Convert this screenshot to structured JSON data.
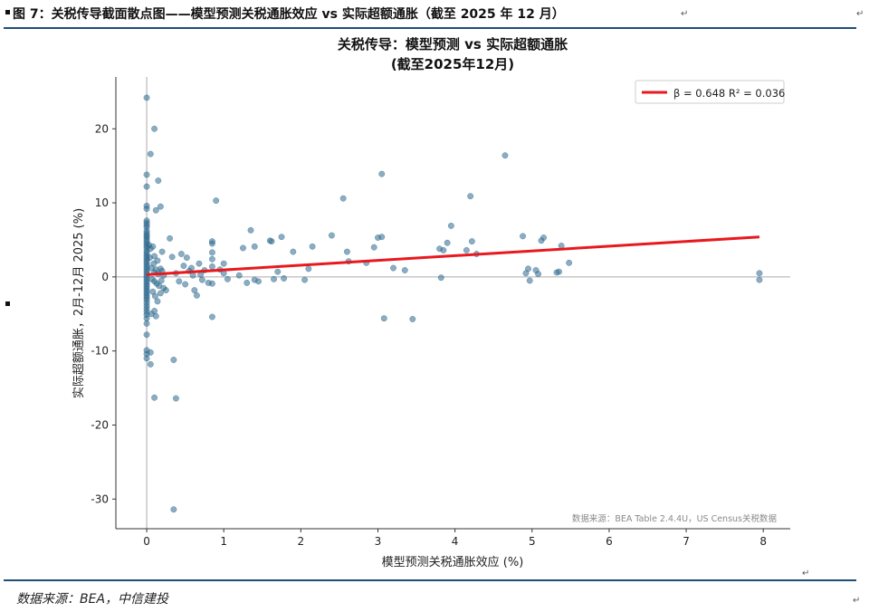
{
  "header": {
    "figure_title": "图 7：关税传导截面散点图——模型预测关税通胀效应 vs 实际超额通胀（截至 2025 年 12 月）",
    "return_mark": "↵"
  },
  "footer": {
    "source": "数据来源：BEA，中信建投",
    "return_mark": "↵"
  },
  "chart_data": {
    "type": "scatter",
    "title_line1": "关税传导：模型预测 vs 实际超额通胀",
    "title_line2": "(截至2025年12月)",
    "xlabel": "模型预测关税通胀效应 (%)",
    "ylabel": "实际超额通胀，2月-12月 2025 (%)",
    "xlim": [
      -0.4,
      8.35
    ],
    "ylim": [
      -34,
      27
    ],
    "xticks": [
      "0",
      "1",
      "2",
      "3",
      "4",
      "5",
      "6",
      "7",
      "8"
    ],
    "yticks": [
      "-30",
      "-20",
      "-10",
      "0",
      "10",
      "20"
    ],
    "grid": false,
    "legend_position": "top-right",
    "legend_label": "β = 0.648  R² = 0.036",
    "source_note": "数据来源：BEA Table 2.4.4U，US Census关税数据",
    "colors": {
      "points": "#2e6a8e",
      "fit_line": "#e8191e",
      "axis": "#333333",
      "zero_lines": "#aaaaaa"
    },
    "fit_line": {
      "x": [
        0,
        7.95
      ],
      "y": [
        0.3,
        5.4
      ]
    },
    "points": [
      [
        0,
        24.2
      ],
      [
        0.1,
        20
      ],
      [
        0.05,
        16.6
      ],
      [
        0.15,
        13
      ],
      [
        0,
        13.8
      ],
      [
        0,
        12.2
      ],
      [
        0.18,
        9.5
      ],
      [
        0.12,
        9
      ],
      [
        0,
        9.6
      ],
      [
        0,
        9.2
      ],
      [
        0,
        7.6
      ],
      [
        0,
        7.3
      ],
      [
        0,
        7
      ],
      [
        0,
        6.7
      ],
      [
        0,
        6.2
      ],
      [
        0,
        5.9
      ],
      [
        0,
        5.6
      ],
      [
        0,
        5.4
      ],
      [
        0,
        5.1
      ],
      [
        0,
        4.8
      ],
      [
        0,
        4.5
      ],
      [
        0,
        4.2
      ],
      [
        0,
        3.9
      ],
      [
        0,
        3.5
      ],
      [
        0,
        3.2
      ],
      [
        0,
        2.9
      ],
      [
        0,
        2.6
      ],
      [
        0,
        2.3
      ],
      [
        0,
        2
      ],
      [
        0,
        1.7
      ],
      [
        0,
        1.4
      ],
      [
        0,
        1.1
      ],
      [
        0,
        0.8
      ],
      [
        0,
        0.5
      ],
      [
        0,
        0.2
      ],
      [
        0,
        -0.1
      ],
      [
        0,
        -0.4
      ],
      [
        0,
        -0.7
      ],
      [
        0,
        -1
      ],
      [
        0,
        -1.3
      ],
      [
        0,
        -1.6
      ],
      [
        0,
        -1.9
      ],
      [
        0,
        -2.2
      ],
      [
        0,
        -2.5
      ],
      [
        0,
        -2.8
      ],
      [
        0,
        -3.1
      ],
      [
        0,
        -3.5
      ],
      [
        0,
        -3.9
      ],
      [
        0,
        -4.3
      ],
      [
        0,
        -4.7
      ],
      [
        0,
        -5.1
      ],
      [
        0,
        -5.6
      ],
      [
        0,
        -6.3
      ],
      [
        0,
        -7.8
      ],
      [
        0,
        -9.9
      ],
      [
        0,
        -10.4
      ],
      [
        0,
        -11
      ],
      [
        0.05,
        -11.8
      ],
      [
        0.05,
        -10.2
      ],
      [
        0.1,
        -16.3
      ],
      [
        0.35,
        -11.2
      ],
      [
        0.38,
        -16.4
      ],
      [
        0.35,
        -31.4
      ],
      [
        0.03,
        4.3
      ],
      [
        0.05,
        3.8
      ],
      [
        0.08,
        4.1
      ],
      [
        0.1,
        2.8
      ],
      [
        0.06,
        1.2
      ],
      [
        0.1,
        0.6
      ],
      [
        0.12,
        1
      ],
      [
        0.15,
        0.4
      ],
      [
        0.18,
        1.1
      ],
      [
        0.2,
        0.8
      ],
      [
        0.22,
        0.2
      ],
      [
        0.07,
        -0.3
      ],
      [
        0.1,
        -0.6
      ],
      [
        0.13,
        -0.9
      ],
      [
        0.16,
        -1.2
      ],
      [
        0.19,
        -0.5
      ],
      [
        0.22,
        -1.5
      ],
      [
        0.08,
        -2
      ],
      [
        0.11,
        -2.6
      ],
      [
        0.14,
        -3.3
      ],
      [
        0.1,
        -4.6
      ],
      [
        0.06,
        -5
      ],
      [
        0.12,
        -5.3
      ],
      [
        0.18,
        -2.2
      ],
      [
        0.25,
        -1.8
      ],
      [
        0.09,
        1.8
      ],
      [
        0.14,
        2.2
      ],
      [
        0.04,
        2.6
      ],
      [
        0.2,
        3.4
      ],
      [
        0.3,
        5.2
      ],
      [
        0.33,
        2.7
      ],
      [
        0.38,
        0.5
      ],
      [
        0.42,
        -0.6
      ],
      [
        0.45,
        3.1
      ],
      [
        0.48,
        1.5
      ],
      [
        0.5,
        -1
      ],
      [
        0.52,
        2.6
      ],
      [
        0.55,
        0.8
      ],
      [
        0.58,
        1.2
      ],
      [
        0.6,
        0.2
      ],
      [
        0.62,
        -1.8
      ],
      [
        0.65,
        -2.5
      ],
      [
        0.68,
        1.8
      ],
      [
        0.7,
        0.3
      ],
      [
        0.72,
        -0.4
      ],
      [
        0.75,
        0.9
      ],
      [
        0.8,
        -0.8
      ],
      [
        0.85,
        4.8
      ],
      [
        0.85,
        4.5
      ],
      [
        0.85,
        3.3
      ],
      [
        0.85,
        2.4
      ],
      [
        0.85,
        1.4
      ],
      [
        0.85,
        -0.9
      ],
      [
        0.85,
        -5.4
      ],
      [
        0.9,
        10.3
      ],
      [
        0.95,
        1
      ],
      [
        1,
        1.8
      ],
      [
        1,
        0.5
      ],
      [
        1.05,
        -0.3
      ],
      [
        1.2,
        0.2
      ],
      [
        1.25,
        3.9
      ],
      [
        1.3,
        -0.8
      ],
      [
        1.35,
        6.3
      ],
      [
        1.4,
        4.1
      ],
      [
        1.4,
        -0.4
      ],
      [
        1.45,
        -0.6
      ],
      [
        1.6,
        4.9
      ],
      [
        1.62,
        4.8
      ],
      [
        1.65,
        -0.3
      ],
      [
        1.7,
        0.7
      ],
      [
        1.75,
        5.4
      ],
      [
        1.78,
        -0.2
      ],
      [
        1.9,
        3.4
      ],
      [
        2.05,
        -0.4
      ],
      [
        2.1,
        1.1
      ],
      [
        2.15,
        4.1
      ],
      [
        2.4,
        5.6
      ],
      [
        2.55,
        10.6
      ],
      [
        2.6,
        3.4
      ],
      [
        2.62,
        2.1
      ],
      [
        2.85,
        1.9
      ],
      [
        2.95,
        4
      ],
      [
        3,
        5.3
      ],
      [
        3.05,
        5.4
      ],
      [
        3.05,
        13.9
      ],
      [
        3.08,
        -5.6
      ],
      [
        3.2,
        1.2
      ],
      [
        3.35,
        0.9
      ],
      [
        3.45,
        -5.7
      ],
      [
        3.8,
        3.8
      ],
      [
        3.85,
        3.6
      ],
      [
        3.9,
        4.6
      ],
      [
        3.82,
        -0.1
      ],
      [
        3.95,
        6.9
      ],
      [
        4.15,
        3.6
      ],
      [
        4.2,
        10.9
      ],
      [
        4.22,
        4.8
      ],
      [
        4.28,
        3.1
      ],
      [
        4.65,
        16.4
      ],
      [
        4.88,
        5.5
      ],
      [
        4.95,
        1.1
      ],
      [
        4.92,
        0.5
      ],
      [
        4.97,
        -0.5
      ],
      [
        5.05,
        0.9
      ],
      [
        5.08,
        0.4
      ],
      [
        5.12,
        4.9
      ],
      [
        5.15,
        5.3
      ],
      [
        5.32,
        0.6
      ],
      [
        5.35,
        0.7
      ],
      [
        5.38,
        4.2
      ],
      [
        5.48,
        1.9
      ],
      [
        7.95,
        0.5
      ],
      [
        7.95,
        -0.4
      ]
    ]
  }
}
